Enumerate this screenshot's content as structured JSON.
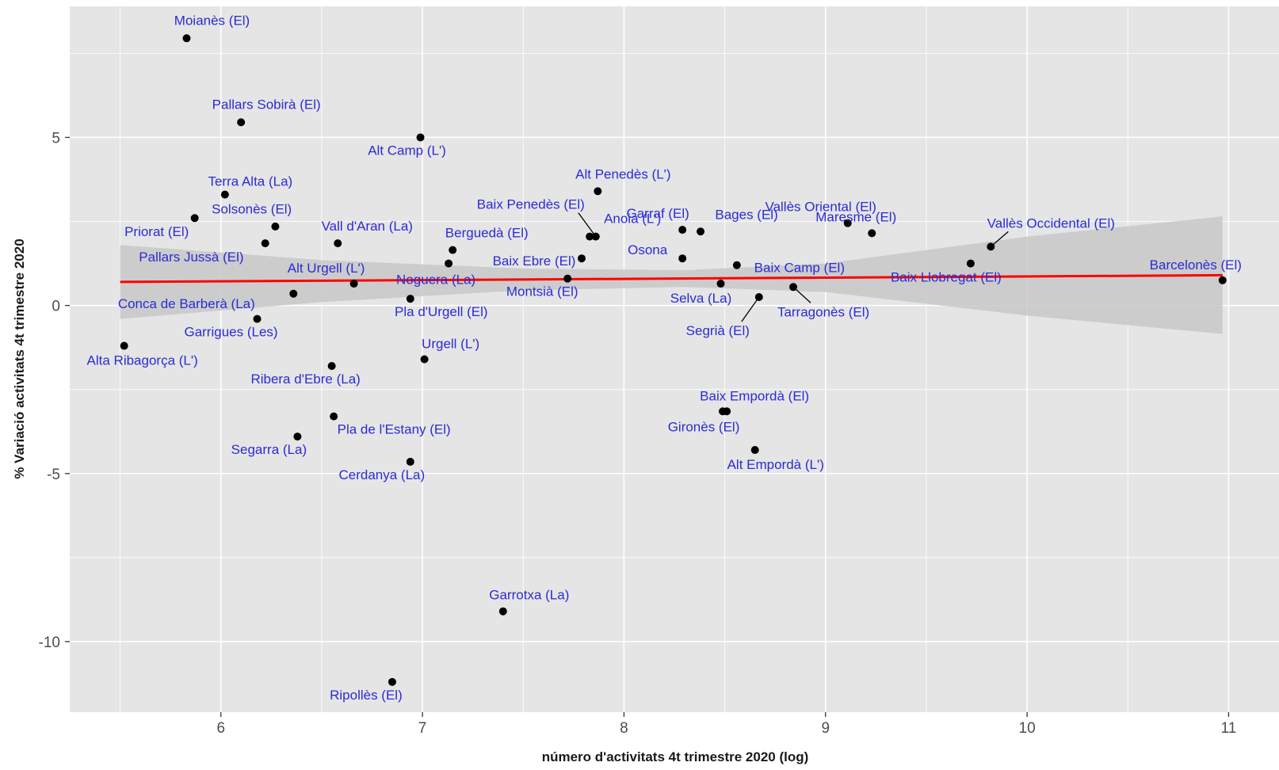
{
  "colors": {
    "panel_background": "#e5e5e5",
    "grid": "#ffffff",
    "points": "#000000",
    "labels": "#2b2bd6",
    "trend_line": "#ff0000",
    "confidence_band": "#c8c8c8"
  },
  "chart_data": {
    "type": "scatter",
    "xlabel": "número d'activitats 4t trimestre 2020 (log)",
    "ylabel": "% Variació activitats 4t trimestre 2020",
    "xlim": [
      5.25,
      11.25
    ],
    "ylim": [
      -12.1,
      8.9
    ],
    "x_ticks": [
      6,
      7,
      8,
      9,
      10,
      11
    ],
    "y_ticks": [
      -10,
      -5,
      0,
      5
    ],
    "grid": true,
    "legend": "none",
    "trend_line": {
      "type": "linear fit",
      "x_start": 5.5,
      "y_start": 0.7,
      "x_end": 10.97,
      "y_end": 0.9
    },
    "confidence_band": [
      {
        "x": 5.5,
        "lower": -0.4,
        "upper": 1.8
      },
      {
        "x": 6.5,
        "lower": 0.1,
        "upper": 1.35
      },
      {
        "x": 7.5,
        "lower": 0.45,
        "upper": 1.1
      },
      {
        "x": 8.3,
        "lower": 0.55,
        "upper": 1.05
      },
      {
        "x": 9.0,
        "lower": 0.4,
        "upper": 1.25
      },
      {
        "x": 10.0,
        "lower": -0.3,
        "upper": 2.05
      },
      {
        "x": 10.97,
        "lower": -0.85,
        "upper": 2.65
      }
    ],
    "points": [
      {
        "label": "Moianès (El)",
        "x": 5.83,
        "y": 7.95
      },
      {
        "label": "Pallars Sobirà (El)",
        "x": 6.1,
        "y": 5.45
      },
      {
        "label": "Alt Camp (L')",
        "x": 6.99,
        "y": 5.0
      },
      {
        "label": "Terra Alta (La)",
        "x": 6.02,
        "y": 3.3
      },
      {
        "label": "Solsonès (El)",
        "x": 5.87,
        "y": 2.6
      },
      {
        "label": "Priorat (El)",
        "x": 6.22,
        "y": 1.85
      },
      {
        "label": "Pallars Jussà (El)",
        "x": 6.27,
        "y": 2.35
      },
      {
        "label": "Vall d'Aran (La)",
        "x": 6.58,
        "y": 1.85
      },
      {
        "label": "Alt Urgell (L')",
        "x": 6.66,
        "y": 0.65
      },
      {
        "label": "Conca de Barberà (La)",
        "x": 6.36,
        "y": 0.35
      },
      {
        "label": "Garrigues (Les)",
        "x": 6.18,
        "y": -0.4
      },
      {
        "label": "Alta Ribagorça (L')",
        "x": 5.52,
        "y": -1.2
      },
      {
        "label": "Ribera d'Ebre (La)",
        "x": 6.55,
        "y": -1.8
      },
      {
        "label": "Pla de l'Estany (El)",
        "x": 6.56,
        "y": -3.3
      },
      {
        "label": "Segarra (La)",
        "x": 6.38,
        "y": -3.9
      },
      {
        "label": "Cerdanya (La)",
        "x": 6.94,
        "y": -4.65
      },
      {
        "label": "Noguera (La)",
        "x": 7.13,
        "y": 1.25
      },
      {
        "label": "Berguedà (El)",
        "x": 7.15,
        "y": 1.65
      },
      {
        "label": "Pla d'Urgell (El)",
        "x": 6.94,
        "y": 0.2
      },
      {
        "label": "Urgell (L')",
        "x": 7.01,
        "y": -1.6
      },
      {
        "label": "Garrotxa (La)",
        "x": 7.4,
        "y": -9.1
      },
      {
        "label": "Ripollès (El)",
        "x": 6.85,
        "y": -11.2
      },
      {
        "label": "Alt Penedès (L')",
        "x": 7.87,
        "y": 3.4
      },
      {
        "label": "Baix Penedès (El)",
        "x": 7.86,
        "y": 2.05
      },
      {
        "label": "Anoia (L')",
        "x": 7.83,
        "y": 2.05
      },
      {
        "label": "Baix Ebre (El)",
        "x": 7.79,
        "y": 1.4
      },
      {
        "label": "Montsià (El)",
        "x": 7.72,
        "y": 0.8
      },
      {
        "label": "Garraf (El)",
        "x": 8.29,
        "y": 2.25
      },
      {
        "label": "Osona",
        "x": 8.29,
        "y": 1.4
      },
      {
        "label": "Bages (El)",
        "x": 8.38,
        "y": 2.2
      },
      {
        "label": "Baix Camp (El)",
        "x": 8.56,
        "y": 1.2
      },
      {
        "label": "Selva (La)",
        "x": 8.48,
        "y": 0.65
      },
      {
        "label": "Segrià (El)",
        "x": 8.67,
        "y": 0.25
      },
      {
        "label": "Tarragonès (El)",
        "x": 8.84,
        "y": 0.55
      },
      {
        "label": "Vallès Oriental (El)",
        "x": 9.11,
        "y": 2.45
      },
      {
        "label": "Maresme (El)",
        "x": 9.23,
        "y": 2.15
      },
      {
        "label": "Baix Llobregat (El)",
        "x": 9.72,
        "y": 1.25
      },
      {
        "label": "Vallès Occidental (El)",
        "x": 9.82,
        "y": 1.75
      },
      {
        "label": "Barcelonès (El)",
        "x": 10.97,
        "y": 0.75
      },
      {
        "label": "Baix Empordà (El)",
        "x": 8.51,
        "y": -3.15
      },
      {
        "label": "Gironès (El)",
        "x": 8.49,
        "y": -3.15
      },
      {
        "label": "Alt Empordà (L')",
        "x": 8.65,
        "y": -4.3
      }
    ]
  }
}
